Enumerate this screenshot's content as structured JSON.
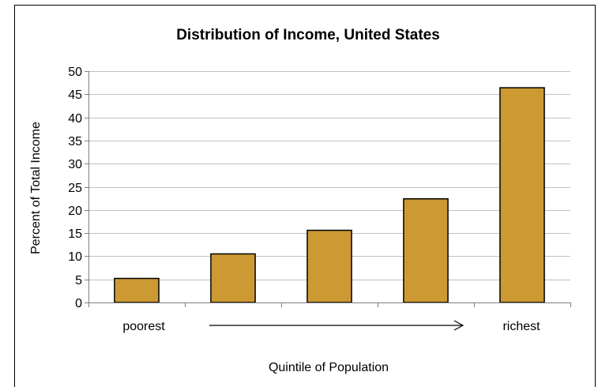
{
  "chart_data": {
    "type": "bar",
    "title": "Distribution of Income, United States",
    "xlabel": "Quintile of Population",
    "ylabel": "Percent of Total Income",
    "categories": [
      "1",
      "2",
      "3",
      "4",
      "5"
    ],
    "values": [
      5.2,
      10.5,
      15.6,
      22.4,
      46.4
    ],
    "ylim": [
      0,
      50
    ],
    "ytick_step": 5,
    "grid": true,
    "legend": "none",
    "bar_color": "#cc9933",
    "annotations": {
      "left": "poorest",
      "right": "richest",
      "arrow": "left-to-right"
    }
  }
}
